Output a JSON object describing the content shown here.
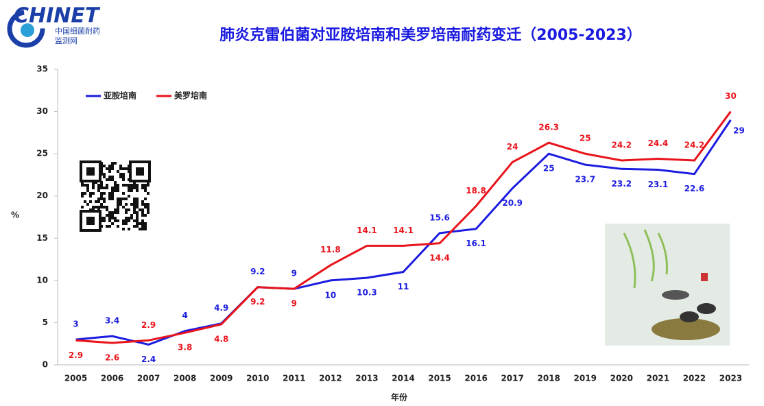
{
  "logo": {
    "title": "CHINET",
    "line1": "中国细菌耐药",
    "line2": "监测网"
  },
  "chart_data": {
    "type": "line",
    "title": "肺炎克雷伯菌对亚胺培南和美罗培南耐药变迁（2005-2023）",
    "x_label": "年份",
    "y_label": "%",
    "categories": [
      "2005",
      "2006",
      "2007",
      "2008",
      "2009",
      "2010",
      "2011",
      "2012",
      "2013",
      "2014",
      "2015",
      "2016",
      "2017",
      "2018",
      "2019",
      "2020",
      "2021",
      "2022",
      "2023"
    ],
    "series": [
      {
        "name": "亚胺培南",
        "color": "#1c1ce0",
        "values": [
          3,
          3.4,
          2.4,
          4,
          4.9,
          9.2,
          9,
          10,
          10.3,
          11,
          15.6,
          16.1,
          20.9,
          25,
          23.7,
          23.2,
          23.1,
          22.6,
          29
        ]
      },
      {
        "name": "美罗培南",
        "color": "#e8141c",
        "values": [
          2.9,
          2.6,
          2.9,
          3.8,
          4.8,
          9.2,
          9,
          11.8,
          14.1,
          14.1,
          14.4,
          18.8,
          24,
          26.3,
          25,
          24.2,
          24.4,
          24.2,
          30
        ]
      }
    ],
    "ylim": [
      0,
      35
    ],
    "yticks": [
      0,
      5,
      10,
      15,
      20,
      25,
      30,
      35
    ],
    "legend": "upper left"
  }
}
